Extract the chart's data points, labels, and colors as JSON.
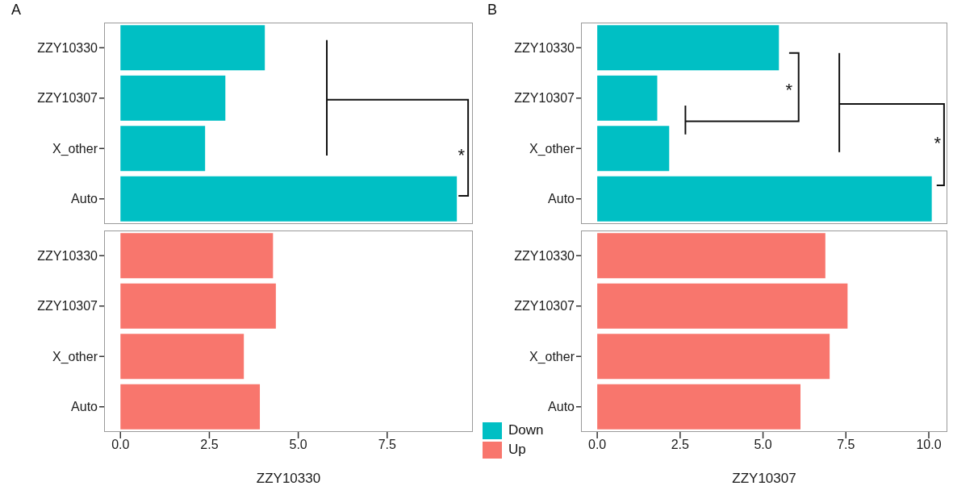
{
  "chart_data": [
    {
      "type": "bar",
      "orientation": "horizontal",
      "title": "A",
      "categories": [
        "ZZY10330",
        "ZZY10307",
        "X_other",
        "Auto"
      ],
      "series": [
        {
          "name": "Down",
          "color": "#00bfc4",
          "values": [
            4.06,
            2.95,
            2.38,
            9.46
          ]
        }
      ],
      "xlim": [
        -0.46,
        9.91
      ],
      "tick_labels": "y",
      "grid": false,
      "legend": "bottom right",
      "annotations": [
        "*"
      ]
    },
    {
      "type": "bar",
      "orientation": "horizontal",
      "xlabel": "ZZY10330",
      "categories": [
        "ZZY10330",
        "ZZY10307",
        "X_other",
        "Auto"
      ],
      "series": [
        {
          "name": "Up",
          "color": "#f8766d",
          "values": [
            4.29,
            4.37,
            3.47,
            3.92
          ]
        }
      ],
      "xlim": [
        -0.46,
        9.91
      ],
      "xticks": [
        {
          "value": 0,
          "label": "0.0"
        },
        {
          "value": 2.5,
          "label": "2.5"
        },
        {
          "value": 5,
          "label": "5.0"
        },
        {
          "value": 7.5,
          "label": "7.5"
        }
      ],
      "grid": false,
      "legend": "bottom right"
    },
    {
      "type": "bar",
      "orientation": "horizontal",
      "title": "B",
      "categories": [
        "ZZY10330",
        "ZZY10307",
        "X_other",
        "Auto"
      ],
      "series": [
        {
          "color": "#00bfc4",
          "values": [
            5.48,
            1.81,
            2.17,
            10.09
          ]
        }
      ],
      "xlim": [
        -0.49,
        10.56
      ],
      "tick_labels": "y",
      "grid": false,
      "annotations": [
        "*",
        "*"
      ]
    },
    {
      "type": "bar",
      "orientation": "horizontal",
      "xlabel": "ZZY10307",
      "categories": [
        "ZZY10330",
        "ZZY10307",
        "X_other",
        "Auto"
      ],
      "series": [
        {
          "color": "#f8766d",
          "values": [
            6.88,
            7.55,
            7.01,
            6.13
          ]
        }
      ],
      "xlim": [
        -0.49,
        10.56
      ],
      "xticks": [
        {
          "value": 0,
          "label": "0.0"
        },
        {
          "value": 2.5,
          "label": "2.5"
        },
        {
          "value": 5,
          "label": "5.0"
        },
        {
          "value": 7.5,
          "label": "7.5"
        },
        {
          "value": 10,
          "label": "10.0"
        }
      ],
      "grid": false
    }
  ]
}
